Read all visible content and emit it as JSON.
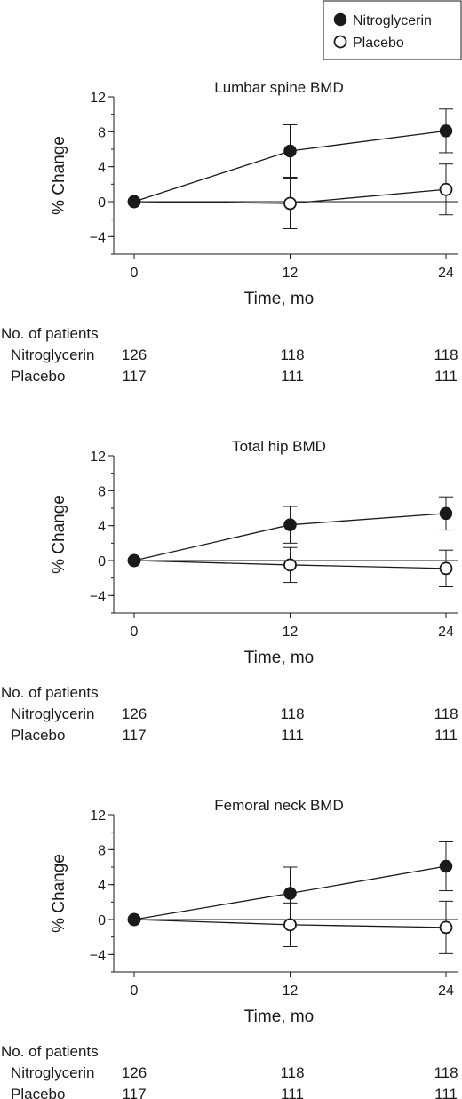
{
  "legend": {
    "entries": [
      {
        "label": "Nitroglycerin",
        "marker": "filled-circle"
      },
      {
        "label": "Placebo",
        "marker": "open-circle"
      }
    ]
  },
  "table": {
    "header": "No. of patients",
    "row_labels": [
      "Nitroglycerin",
      "Placebo"
    ]
  },
  "colors": {
    "ink": "#1a1a1a",
    "placebo_fill": "#ffffff"
  },
  "chart_data": [
    {
      "type": "line",
      "title": "Lumbar spine BMD",
      "xlabel": "Time, mo",
      "ylabel": "% Change",
      "x": [
        0,
        12,
        24
      ],
      "x_ticks": [
        "0",
        "12",
        "24"
      ],
      "y_ticks": [
        "12",
        "8",
        "4",
        "0",
        "−4"
      ],
      "ylim": [
        -6,
        12
      ],
      "series": [
        {
          "name": "Nitroglycerin",
          "values": [
            0,
            5.8,
            8.1
          ],
          "err": [
            0,
            3.0,
            2.5
          ]
        },
        {
          "name": "Placebo",
          "values": [
            0,
            -0.2,
            1.4
          ],
          "err": [
            0,
            2.9,
            2.9
          ]
        }
      ],
      "patients": {
        "Nitroglycerin": [
          "126",
          "118",
          "118"
        ],
        "Placebo": [
          "117",
          "111",
          "111"
        ]
      }
    },
    {
      "type": "line",
      "title": "Total hip BMD",
      "xlabel": "Time, mo",
      "ylabel": "% Change",
      "x": [
        0,
        12,
        24
      ],
      "x_ticks": [
        "0",
        "12",
        "24"
      ],
      "y_ticks": [
        "12",
        "8",
        "4",
        "0",
        "−4"
      ],
      "ylim": [
        -6,
        12
      ],
      "series": [
        {
          "name": "Nitroglycerin",
          "values": [
            0,
            4.1,
            5.4
          ],
          "err": [
            0,
            2.1,
            1.9
          ]
        },
        {
          "name": "Placebo",
          "values": [
            0,
            -0.5,
            -0.9
          ],
          "err": [
            0,
            2.0,
            2.1
          ]
        }
      ],
      "patients": {
        "Nitroglycerin": [
          "126",
          "118",
          "118"
        ],
        "Placebo": [
          "117",
          "111",
          "111"
        ]
      }
    },
    {
      "type": "line",
      "title": "Femoral neck BMD",
      "xlabel": "Time, mo",
      "ylabel": "% Change",
      "x": [
        0,
        12,
        24
      ],
      "x_ticks": [
        "0",
        "12",
        "24"
      ],
      "y_ticks": [
        "12",
        "8",
        "4",
        "0",
        "−4"
      ],
      "ylim": [
        -6,
        12
      ],
      "series": [
        {
          "name": "Nitroglycerin",
          "values": [
            0,
            3.0,
            6.1
          ],
          "err": [
            0,
            3.0,
            2.8
          ]
        },
        {
          "name": "Placebo",
          "values": [
            0,
            -0.6,
            -0.9
          ],
          "err": [
            0,
            2.5,
            3.0
          ]
        }
      ],
      "patients": {
        "Nitroglycerin": [
          "126",
          "118",
          "118"
        ],
        "Placebo": [
          "117",
          "111",
          "111"
        ]
      }
    }
  ]
}
